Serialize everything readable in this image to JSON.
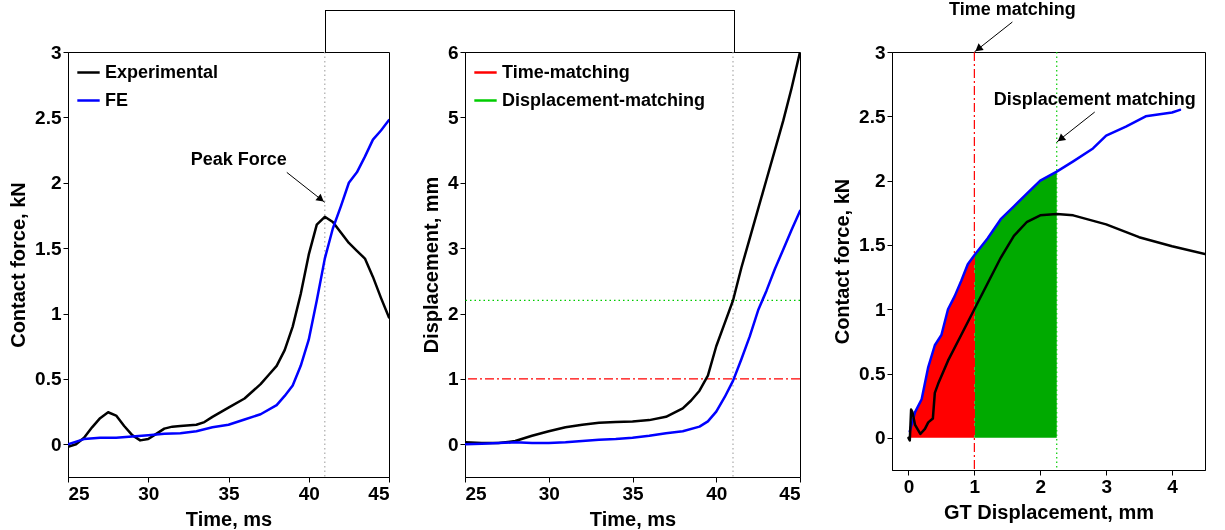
{
  "chart_data": [
    {
      "type": "line",
      "xlabel": "Time, ms",
      "ylabel": "Contact force, kN",
      "xlim": [
        25,
        45
      ],
      "ylim": [
        -0.25,
        3
      ],
      "xticks": [
        25,
        30,
        35,
        40,
        45
      ],
      "yticks": [
        0,
        0.5,
        1,
        1.5,
        2,
        2.5,
        3
      ],
      "grid": false,
      "legend": "top left",
      "x": [
        25,
        25.5,
        26,
        26.5,
        27,
        27.5,
        28,
        28.5,
        29,
        29.5,
        30,
        30.5,
        31,
        31.5,
        32,
        33,
        33.5,
        34,
        35,
        36,
        37,
        37.5,
        38,
        38.5,
        39,
        39.5,
        40,
        40.5,
        41,
        41.5,
        42,
        42.5,
        43,
        43.5,
        44,
        44.5,
        45
      ],
      "series": [
        {
          "name": "Experimental",
          "color": "#000000",
          "values": [
            -0.02,
            0.0,
            0.05,
            0.13,
            0.2,
            0.245,
            0.22,
            0.14,
            0.07,
            0.03,
            0.04,
            0.08,
            0.12,
            0.135,
            0.14,
            0.15,
            0.17,
            0.21,
            0.28,
            0.35,
            0.46,
            0.53,
            0.6,
            0.72,
            0.9,
            1.15,
            1.45,
            1.68,
            1.74,
            1.7,
            1.62,
            1.54,
            1.48,
            1.42,
            1.28,
            1.12,
            0.97
          ]
        },
        {
          "name": "FE",
          "color": "#0000ff",
          "x": [
            25,
            26,
            27,
            28,
            29,
            30,
            31,
            32,
            33,
            34,
            35,
            36,
            37,
            38,
            38.5,
            39,
            39.5,
            40,
            40.5,
            41,
            41.5,
            42,
            42.5,
            43,
            43.5,
            44,
            44.5,
            45
          ],
          "values": [
            0.0,
            0.04,
            0.05,
            0.05,
            0.06,
            0.07,
            0.08,
            0.085,
            0.1,
            0.13,
            0.15,
            0.19,
            0.23,
            0.3,
            0.37,
            0.45,
            0.6,
            0.8,
            1.1,
            1.42,
            1.65,
            1.82,
            2.0,
            2.08,
            2.2,
            2.33,
            2.4,
            2.48
          ]
        }
      ],
      "ref_lines": [
        {
          "axis": "x",
          "value": 41,
          "color": "#aaaaaa",
          "line_style": "dotted"
        }
      ],
      "annotations": [
        {
          "text": "Peak Force",
          "x": 41,
          "y": 1.85
        }
      ]
    },
    {
      "type": "line",
      "xlabel": "Time, ms",
      "ylabel": "Displacement, mm",
      "xlim": [
        25,
        45
      ],
      "ylim": [
        -0.5,
        6
      ],
      "xticks": [
        25,
        30,
        35,
        40,
        45
      ],
      "yticks": [
        0,
        1,
        2,
        3,
        4,
        5,
        6
      ],
      "grid": false,
      "legend": "top left",
      "series": [
        {
          "color": "#000000",
          "x": [
            25,
            26,
            27,
            28,
            29,
            30,
            31,
            32,
            33,
            34,
            35,
            36,
            37,
            38,
            38.5,
            39,
            39.5,
            40,
            40.5,
            41,
            41.5,
            42,
            42.5,
            43,
            43.5,
            44,
            44.5,
            45
          ],
          "values": [
            0.03,
            0.02,
            0.02,
            0.05,
            0.13,
            0.2,
            0.26,
            0.3,
            0.33,
            0.34,
            0.35,
            0.37,
            0.42,
            0.55,
            0.67,
            0.82,
            1.05,
            1.5,
            1.85,
            2.2,
            2.7,
            3.15,
            3.6,
            4.05,
            4.5,
            4.95,
            5.45,
            6.0
          ]
        },
        {
          "color": "#0000ff",
          "x": [
            25,
            26,
            27,
            28,
            29,
            30,
            31,
            32,
            33,
            34,
            35,
            36,
            37,
            38,
            39,
            39.5,
            40,
            40.5,
            41,
            41.5,
            42,
            42.5,
            43,
            43.5,
            44,
            44.5,
            45
          ],
          "values": [
            0.0,
            0.01,
            0.02,
            0.03,
            0.02,
            0.02,
            0.03,
            0.05,
            0.07,
            0.08,
            0.1,
            0.13,
            0.17,
            0.2,
            0.27,
            0.35,
            0.5,
            0.72,
            0.97,
            1.3,
            1.65,
            2.05,
            2.35,
            2.68,
            2.98,
            3.28,
            3.57
          ]
        }
      ],
      "ref_lines": [
        {
          "axis": "x",
          "value": 41,
          "color": "#aaaaaa",
          "line_style": "dotted"
        },
        {
          "axis": "y",
          "value": 1,
          "label": "Time-matching",
          "color": "#ff0000",
          "line_style": "dashed"
        },
        {
          "axis": "y",
          "value": 2.2,
          "label": "Displacement-matching",
          "color": "#00cc00",
          "line_style": "dotted"
        }
      ]
    },
    {
      "type": "line",
      "xlabel": "GT Displacement, mm",
      "ylabel": "Contact force, kN",
      "xlim": [
        -0.25,
        4.5
      ],
      "ylim": [
        -0.25,
        3
      ],
      "xticks": [
        0,
        1,
        2,
        3,
        4
      ],
      "yticks": [
        0,
        0.5,
        1,
        1.5,
        2,
        2.5,
        3
      ],
      "grid": false,
      "series": [
        {
          "type": "area",
          "color": "#ff0000",
          "x": [
            0.02,
            0.1,
            0.2,
            0.3,
            0.4,
            0.5,
            0.6,
            0.7,
            0.8,
            0.9,
            1.0
          ],
          "values": [
            0.05,
            0.2,
            0.3,
            0.55,
            0.72,
            0.8,
            1.0,
            1.1,
            1.22,
            1.35,
            1.42
          ]
        },
        {
          "type": "area",
          "color": "#00aa00",
          "x": [
            1.0,
            1.2,
            1.4,
            1.6,
            1.8,
            2.0,
            2.25
          ],
          "values": [
            1.42,
            1.55,
            1.7,
            1.8,
            1.9,
            2.0,
            2.07
          ]
        },
        {
          "color": "#0000ff",
          "x": [
            0.02,
            0.1,
            0.2,
            0.3,
            0.4,
            0.5,
            0.6,
            0.7,
            0.8,
            0.9,
            1.0,
            1.2,
            1.4,
            1.6,
            1.8,
            2.0,
            2.25,
            2.5,
            2.8,
            3.0,
            3.3,
            3.6,
            4.0,
            4.12
          ],
          "values": [
            0.05,
            0.2,
            0.3,
            0.55,
            0.72,
            0.8,
            1.0,
            1.1,
            1.22,
            1.35,
            1.42,
            1.55,
            1.7,
            1.8,
            1.9,
            2.0,
            2.07,
            2.15,
            2.25,
            2.35,
            2.42,
            2.5,
            2.53,
            2.55
          ]
        },
        {
          "color": "#000000",
          "x": [
            0,
            0.02,
            0.04,
            0.06,
            0.1,
            0.18,
            0.25,
            0.3,
            0.37,
            0.4,
            0.45,
            0.6,
            0.8,
            1.0,
            1.2,
            1.4,
            1.6,
            1.8,
            2.0,
            2.25,
            2.5,
            3.0,
            3.5,
            4.0,
            4.5
          ],
          "values": [
            0,
            -0.02,
            0.22,
            0.2,
            0.1,
            0.03,
            0.07,
            0.12,
            0.15,
            0.35,
            0.42,
            0.6,
            0.8,
            1.0,
            1.2,
            1.4,
            1.57,
            1.68,
            1.73,
            1.74,
            1.73,
            1.66,
            1.56,
            1.49,
            1.43
          ]
        }
      ],
      "ref_lines": [
        {
          "axis": "x",
          "value": 1,
          "color": "#ff0000",
          "line_style": "dashed"
        },
        {
          "axis": "x",
          "value": 2.25,
          "color": "#00cc00",
          "line_style": "dotted"
        }
      ],
      "annotations": [
        {
          "text": "Time matching",
          "x": 1,
          "y": 3
        },
        {
          "text": "Displacement matching",
          "x": 2.25,
          "y": 2.3
        }
      ]
    }
  ]
}
